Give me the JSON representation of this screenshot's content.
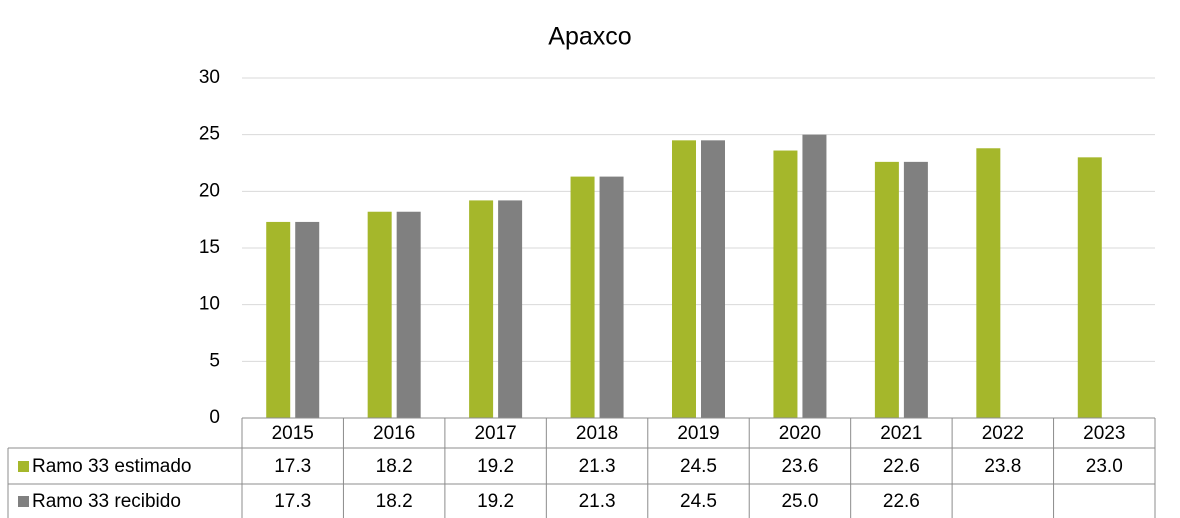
{
  "chart_data": {
    "type": "bar",
    "title": "Apaxco",
    "categories": [
      "2015",
      "2016",
      "2017",
      "2018",
      "2019",
      "2020",
      "2021",
      "2022",
      "2023"
    ],
    "series": [
      {
        "name": "Ramo 33 estimado",
        "color": "#a5b72b",
        "values": [
          17.3,
          18.2,
          19.2,
          21.3,
          24.5,
          23.6,
          22.6,
          23.8,
          23.0
        ],
        "value_labels": [
          "17.3",
          "18.2",
          "19.2",
          "21.3",
          "24.5",
          "23.6",
          "22.6",
          "23.8",
          "23.0"
        ]
      },
      {
        "name": "Ramo 33 recibido",
        "color": "#808080",
        "values": [
          17.3,
          18.2,
          19.2,
          21.3,
          24.5,
          25.0,
          22.6,
          null,
          null
        ],
        "value_labels": [
          "17.3",
          "18.2",
          "19.2",
          "21.3",
          "24.5",
          "25.0",
          "22.6",
          null,
          null
        ]
      }
    ],
    "ylim": [
      0,
      30
    ],
    "yticks": [
      0,
      5,
      10,
      15,
      20,
      25,
      30
    ],
    "grid": true
  }
}
